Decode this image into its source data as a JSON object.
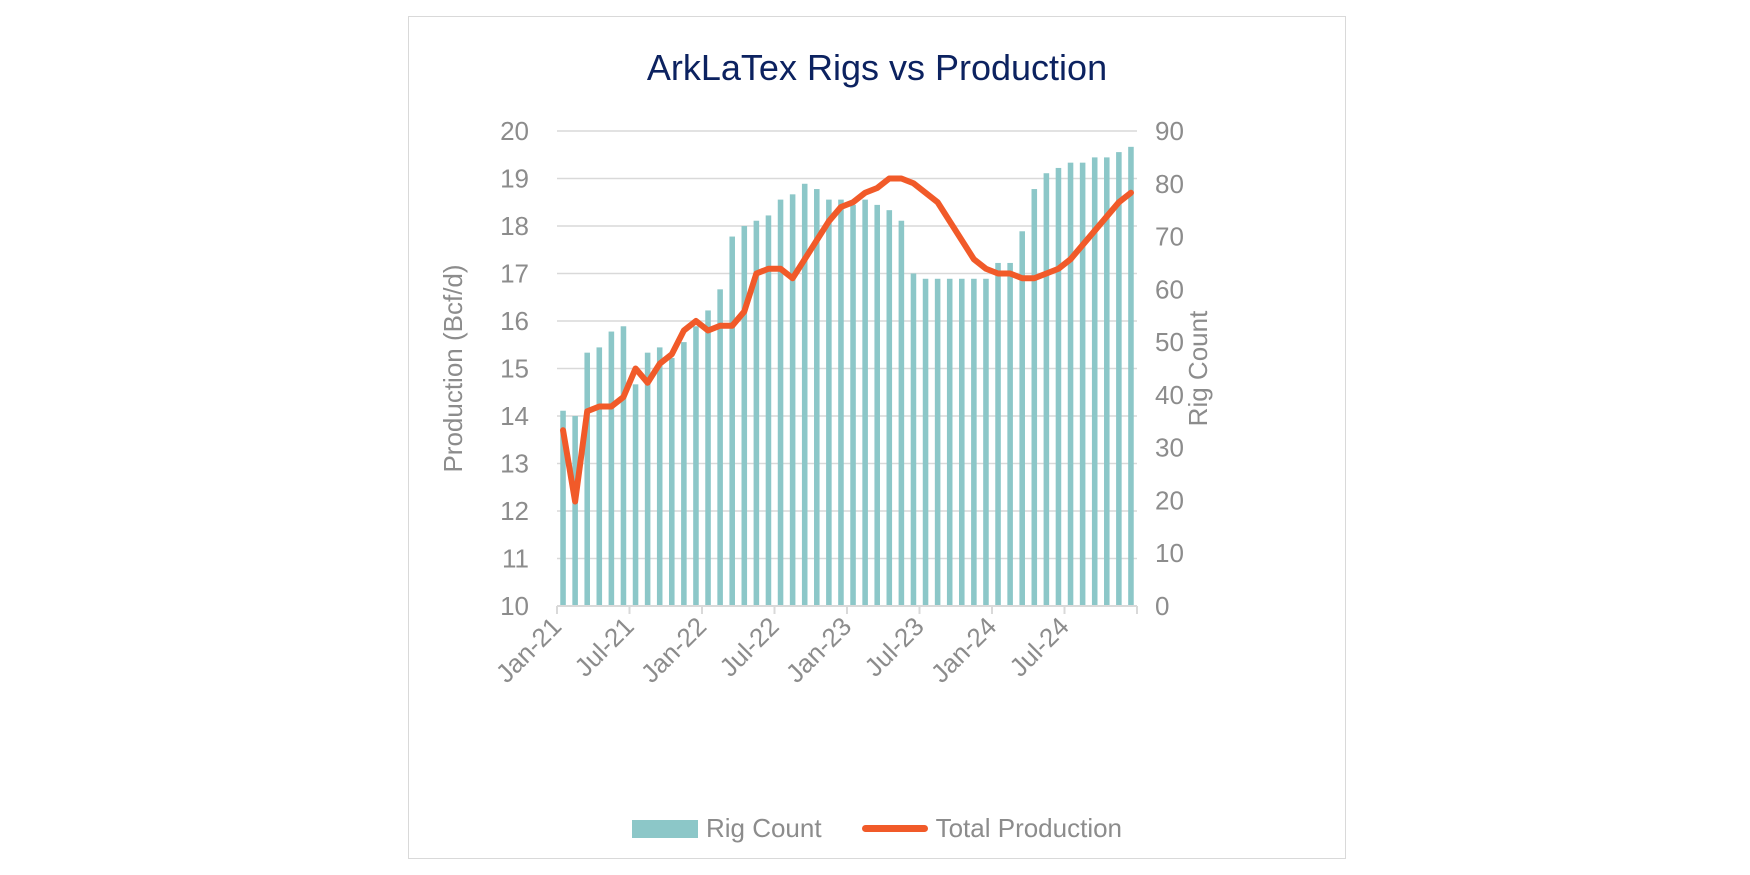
{
  "chart_data": {
    "type": "bar+line",
    "title": "ArkLaTex Rigs vs Production",
    "ylabel": "Production (Bcf/d)",
    "y2label": "Rig Count",
    "ylim": [
      10,
      20
    ],
    "y2lim": [
      0,
      90
    ],
    "yticks": [
      "10",
      "11",
      "12",
      "13",
      "14",
      "15",
      "16",
      "17",
      "18",
      "19",
      "20"
    ],
    "y2ticks": [
      "0",
      "10",
      "20",
      "30",
      "40",
      "50",
      "60",
      "70",
      "80",
      "90"
    ],
    "xtick_labels": [
      "Jan-21",
      "Jul-21",
      "Jan-22",
      "Jul-22",
      "Jan-23",
      "Jul-23",
      "Jan-24",
      "Jul-24"
    ],
    "x": [
      "2021-01",
      "2021-02",
      "2021-03",
      "2021-04",
      "2021-05",
      "2021-06",
      "2021-07",
      "2021-08",
      "2021-09",
      "2021-10",
      "2021-11",
      "2021-12",
      "2022-01",
      "2022-02",
      "2022-03",
      "2022-04",
      "2022-05",
      "2022-06",
      "2022-07",
      "2022-08",
      "2022-09",
      "2022-10",
      "2022-11",
      "2022-12",
      "2023-01",
      "2023-02",
      "2023-03",
      "2023-04",
      "2023-05",
      "2023-06",
      "2023-07",
      "2023-08",
      "2023-09",
      "2023-10",
      "2023-11",
      "2023-12",
      "2024-01",
      "2024-02",
      "2024-03",
      "2024-04",
      "2024-05",
      "2024-06",
      "2024-07",
      "2024-08",
      "2024-09",
      "2024-10",
      "2024-11",
      "2024-12"
    ],
    "grid": true,
    "legend_position": "bottom",
    "series": [
      {
        "name": "Rig Count",
        "type": "bar",
        "axis": "right",
        "color": "#8cc7c8",
        "values": [
          37,
          36,
          48,
          49,
          52,
          53,
          42,
          48,
          49,
          47,
          50,
          53,
          56,
          60,
          70,
          72,
          73,
          74,
          77,
          78,
          80,
          79,
          77,
          77,
          76,
          77,
          76,
          75,
          73,
          63,
          62,
          62,
          62,
          62,
          62,
          62,
          65,
          65,
          71,
          79,
          82,
          83,
          84,
          84,
          85,
          85,
          86,
          87
        ]
      },
      {
        "name": "Total Production",
        "type": "line",
        "axis": "left",
        "color": "#f15a29",
        "values": [
          13.7,
          12.2,
          14.1,
          14.2,
          14.2,
          14.4,
          15.0,
          14.7,
          15.1,
          15.3,
          15.8,
          16.0,
          15.8,
          15.9,
          15.9,
          16.2,
          17.0,
          17.1,
          17.1,
          16.9,
          17.3,
          17.7,
          18.1,
          18.4,
          18.5,
          18.7,
          18.8,
          19.0,
          19.0,
          18.9,
          18.7,
          18.5,
          18.1,
          17.7,
          17.3,
          17.1,
          17.0,
          17.0,
          16.9,
          16.9,
          17.0,
          17.1,
          17.3,
          17.6,
          17.9,
          18.2,
          18.5,
          18.7
        ]
      }
    ]
  }
}
